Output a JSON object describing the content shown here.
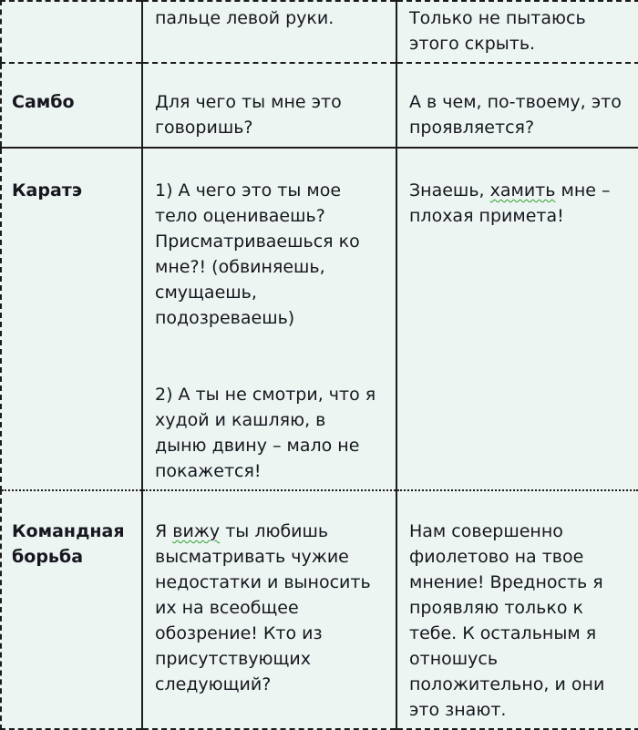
{
  "page": {
    "background_color": "#edf5f2",
    "text_color": "#17171f",
    "border_color": "#1c1c1c",
    "spellcheck_squiggle_color": "#2f9e2f"
  },
  "table": {
    "rows": [
      {
        "label": "",
        "col2_lines": [
          "пальце левой руки."
        ],
        "col3_lines": [
          "Только не пытаюсь",
          "этого скрыть."
        ]
      },
      {
        "label": "Самбо",
        "col2_lines": [
          "Для чего ты мне это",
          "говоришь?"
        ],
        "col3_lines": [
          "А в чем, по-твоему, это",
          "проявляется?"
        ]
      },
      {
        "label": "Каратэ",
        "col2_lines": [
          "1) А чего это ты мое",
          "тело оцениваешь?",
          "Присматриваешься ко",
          "мне?! (обвиняешь,",
          "смущаешь,",
          "подозреваешь)",
          "",
          "",
          "2) А ты не смотри, что я",
          "худой и кашляю, в",
          "дыню двину – мало не",
          "покажется!"
        ],
        "col3_prefix": "Знаешь, ",
        "col3_word": "хамить",
        "col3_suffix": " мне –\nплохая примета!"
      },
      {
        "label_lines": [
          "Командная",
          "борьба"
        ],
        "col2_prefix": "Я ",
        "col2_word": "вижу",
        "col2_suffix": " ты любишь\nвысматривать чужие\nнедостатки и выносить\nих на всеобщее\nобозрение! Кто из\nприсутствующих\nследующий?",
        "col3_lines": [
          "Нам совершенно",
          "фиолетово на твое",
          "мнение! Вредность я",
          "проявляю только к",
          "тебе. К остальным я",
          "отношусь",
          "положительно, и они",
          "это знают."
        ]
      }
    ]
  }
}
